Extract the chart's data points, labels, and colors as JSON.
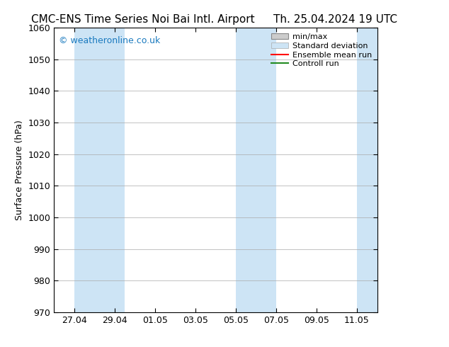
{
  "title_left": "CMC-ENS Time Series Noi Bai Intl. Airport",
  "title_right": "Th. 25.04.2024 19 UTC",
  "ylabel": "Surface Pressure (hPa)",
  "watermark": "© weatheronline.co.uk",
  "ylim": [
    970,
    1060
  ],
  "yticks": [
    970,
    980,
    990,
    1000,
    1010,
    1020,
    1030,
    1040,
    1050,
    1060
  ],
  "xtick_labels": [
    "27.04",
    "29.04",
    "01.05",
    "03.05",
    "05.05",
    "07.05",
    "09.05",
    "11.05"
  ],
  "xtick_positions": [
    2,
    4,
    6,
    8,
    10,
    12,
    14,
    16
  ],
  "xlim": [
    1,
    17
  ],
  "shaded_bands": [
    {
      "x_start": 2,
      "x_end": 4
    },
    {
      "x_start": 4,
      "x_end": 4.5
    },
    {
      "x_start": 10,
      "x_end": 12
    },
    {
      "x_start": 16,
      "x_end": 17
    }
  ],
  "shaded_color": "#cde4f5",
  "bg_color": "#ffffff",
  "grid_color": "#aaaaaa",
  "title_fontsize": 11,
  "watermark_color": "#1a7abf",
  "watermark_fontsize": 9,
  "ylabel_fontsize": 9,
  "tick_fontsize": 9,
  "legend_items": [
    {
      "label": "min/max",
      "color": "#aaaaaa",
      "style": "minmax"
    },
    {
      "label": "Standard deviation",
      "color": "#cde4f5",
      "style": "fill"
    },
    {
      "label": "Ensemble mean run",
      "color": "#ff0000",
      "style": "line"
    },
    {
      "label": "Controll run",
      "color": "#228b22",
      "style": "line"
    }
  ]
}
